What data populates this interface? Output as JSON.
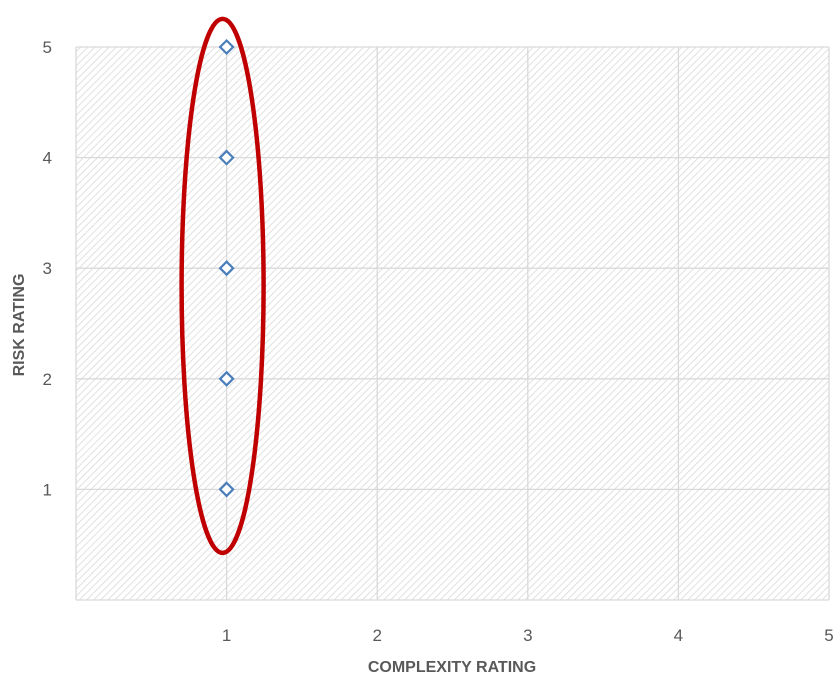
{
  "chart_data": {
    "type": "scatter",
    "title": "",
    "xlabel": "COMPLEXITY RATING",
    "ylabel": "RISK RATING",
    "xlim": [
      0,
      5
    ],
    "ylim": [
      0,
      5
    ],
    "x_ticks": [
      "1",
      "2",
      "3",
      "4",
      "5"
    ],
    "y_ticks": [
      "1",
      "2",
      "3",
      "4",
      "5"
    ],
    "grid": true,
    "legend": "none",
    "series": [
      {
        "x": [
          1,
          1,
          1,
          1,
          1
        ],
        "y": [
          1,
          2,
          3,
          4,
          5
        ],
        "marker": "diamond-open",
        "color": "#4a7ebb"
      }
    ],
    "annotations": [
      {
        "type": "ellipse",
        "center_x": 1,
        "center_y": 2.84,
        "color": "#c00000"
      }
    ],
    "plot_fill": "diagonal-hatch",
    "hatch_color": "#d9d9d9",
    "grid_color": "#d9d9d9"
  }
}
